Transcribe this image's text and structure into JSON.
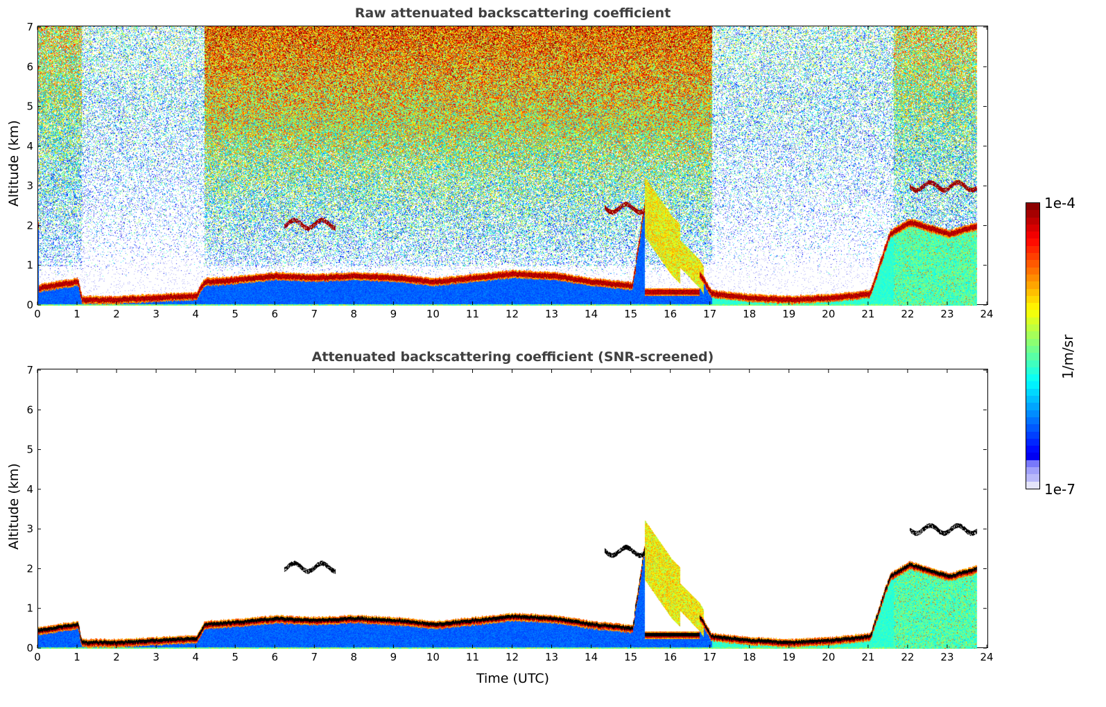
{
  "chart_data": [
    {
      "type": "heatmap",
      "title": "Raw attenuated backscattering coefficient",
      "xlabel": "",
      "ylabel": "Altitude (km)",
      "xlim": [
        0,
        24
      ],
      "ylim": [
        0,
        7
      ],
      "xticks": [
        0,
        1,
        2,
        3,
        4,
        5,
        6,
        7,
        8,
        9,
        10,
        11,
        12,
        13,
        14,
        15,
        16,
        17,
        18,
        19,
        20,
        21,
        22,
        23,
        24
      ],
      "yticks": [
        0,
        1,
        2,
        3,
        4,
        5,
        6,
        7
      ],
      "screened": false
    },
    {
      "type": "heatmap",
      "title": "Attenuated backscattering coefficient (SNR-screened)",
      "xlabel": "Time (UTC)",
      "ylabel": "Altitude (km)",
      "xlim": [
        0,
        24
      ],
      "ylim": [
        0,
        7
      ],
      "xticks": [
        0,
        1,
        2,
        3,
        4,
        5,
        6,
        7,
        8,
        9,
        10,
        11,
        12,
        13,
        14,
        15,
        16,
        17,
        18,
        19,
        20,
        21,
        22,
        23,
        24
      ],
      "yticks": [
        0,
        1,
        2,
        3,
        4,
        5,
        6,
        7
      ],
      "screened": true
    }
  ],
  "layer_top_km": {
    "t": [
      0,
      1,
      1.1,
      2,
      3,
      4,
      4.2,
      5,
      6,
      7,
      8,
      9,
      10,
      11,
      12,
      13,
      14,
      15,
      15.3,
      16,
      16.7,
      17,
      18,
      19,
      20,
      21,
      21.5,
      22,
      23,
      23.7
    ],
    "z": [
      0.45,
      0.6,
      0.15,
      0.15,
      0.2,
      0.25,
      0.6,
      0.65,
      0.75,
      0.7,
      0.75,
      0.7,
      0.6,
      0.7,
      0.8,
      0.75,
      0.6,
      0.5,
      2.5,
      1.5,
      0.8,
      0.3,
      0.2,
      0.15,
      0.2,
      0.3,
      1.8,
      2.1,
      1.8,
      2.0
    ]
  },
  "elevated_layers": [
    {
      "t": [
        6.2,
        7.5
      ],
      "z": 2.05
    },
    {
      "t": [
        14.3,
        15.3
      ],
      "z": 2.45
    },
    {
      "t": [
        22,
        23.7
      ],
      "z": 3.0
    }
  ],
  "data_end_hour": 23.7,
  "colorbar": {
    "label": "1/m/sr",
    "min_label": "1e-7",
    "max_label": "1e-4",
    "min": 1e-07,
    "max": 0.0001,
    "colormap": "jet"
  }
}
